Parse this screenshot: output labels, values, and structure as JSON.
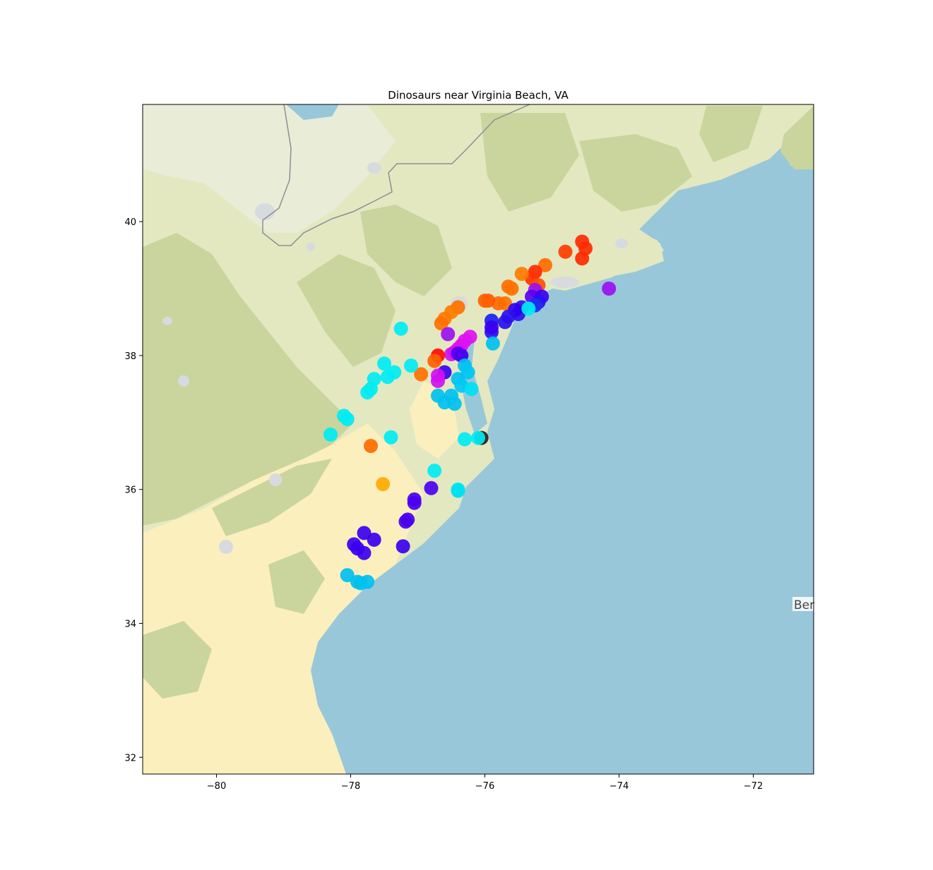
{
  "chart_data": {
    "type": "scatter",
    "title": "Dinosaurs near Virginia Beach, VA",
    "xlabel": "",
    "ylabel": "",
    "xlim": [
      -81.1,
      -71.1
    ],
    "ylim": [
      31.75,
      41.75
    ],
    "x_ticks": [
      -80,
      -78,
      -76,
      -74,
      -72
    ],
    "y_ticks": [
      32,
      34,
      36,
      38,
      40
    ],
    "x_tick_labels": [
      "−80",
      "−78",
      "−76",
      "−74",
      "−72"
    ],
    "y_tick_labels": [
      "32",
      "34",
      "36",
      "38",
      "40"
    ],
    "grid": false,
    "basemap_label": "Ber",
    "colors": {
      "ocean": "#98c7da",
      "land_lowland": "#fbefbd",
      "land_mid": "#e3e8c1",
      "land_forest": "#c9d59c",
      "land_high": "#e9ecd6",
      "urban": "#d7dade",
      "border": "#8a8f96"
    },
    "points": [
      {
        "x": -76.05,
        "y": 36.77,
        "color": "#222222"
      },
      {
        "x": -74.55,
        "y": 39.7,
        "color": "#ff2a00"
      },
      {
        "x": -74.5,
        "y": 39.6,
        "color": "#ff2a00"
      },
      {
        "x": -74.55,
        "y": 39.45,
        "color": "#ff2a00"
      },
      {
        "x": -74.8,
        "y": 39.55,
        "color": "#ff3c00"
      },
      {
        "x": -75.1,
        "y": 39.35,
        "color": "#ff6a00"
      },
      {
        "x": -75.25,
        "y": 39.25,
        "color": "#ff2a00"
      },
      {
        "x": -75.3,
        "y": 39.15,
        "color": "#ff3300"
      },
      {
        "x": -75.2,
        "y": 39.05,
        "color": "#ff5000"
      },
      {
        "x": -75.45,
        "y": 39.22,
        "color": "#ff7a00"
      },
      {
        "x": -75.6,
        "y": 39.0,
        "color": "#ff7000"
      },
      {
        "x": -75.65,
        "y": 39.03,
        "color": "#ff7000"
      },
      {
        "x": -75.7,
        "y": 38.78,
        "color": "#ff7000"
      },
      {
        "x": -75.8,
        "y": 38.78,
        "color": "#ff6a00"
      },
      {
        "x": -75.95,
        "y": 38.82,
        "color": "#ff5a00"
      },
      {
        "x": -76.0,
        "y": 38.82,
        "color": "#ff6000"
      },
      {
        "x": -75.25,
        "y": 38.98,
        "color": "#9b10f0"
      },
      {
        "x": -74.15,
        "y": 39.0,
        "color": "#9b10f0"
      },
      {
        "x": -75.3,
        "y": 38.88,
        "color": "#5a00f0"
      },
      {
        "x": -75.15,
        "y": 38.88,
        "color": "#3a00f0"
      },
      {
        "x": -75.2,
        "y": 38.8,
        "color": "#2a10f0"
      },
      {
        "x": -75.25,
        "y": 38.75,
        "color": "#1a30f0"
      },
      {
        "x": -75.45,
        "y": 38.72,
        "color": "#2a10f0"
      },
      {
        "x": -75.5,
        "y": 38.62,
        "color": "#2a10f0"
      },
      {
        "x": -75.55,
        "y": 38.68,
        "color": "#3000f0"
      },
      {
        "x": -75.7,
        "y": 38.5,
        "color": "#2a10f0"
      },
      {
        "x": -75.65,
        "y": 38.58,
        "color": "#2a10f0"
      },
      {
        "x": -75.9,
        "y": 38.52,
        "color": "#1a20f0"
      },
      {
        "x": -75.9,
        "y": 38.35,
        "color": "#2a10f0"
      },
      {
        "x": -75.9,
        "y": 38.42,
        "color": "#3a00f0"
      },
      {
        "x": -75.35,
        "y": 38.7,
        "color": "#00ecf4"
      },
      {
        "x": -75.88,
        "y": 38.18,
        "color": "#00c0f0"
      },
      {
        "x": -76.4,
        "y": 38.72,
        "color": "#ff7000"
      },
      {
        "x": -76.5,
        "y": 38.65,
        "color": "#ff7a00"
      },
      {
        "x": -76.6,
        "y": 38.55,
        "color": "#ff7a00"
      },
      {
        "x": -76.65,
        "y": 38.48,
        "color": "#ff7000"
      },
      {
        "x": -76.55,
        "y": 38.32,
        "color": "#9b10f0"
      },
      {
        "x": -76.22,
        "y": 38.28,
        "color": "#e010f0"
      },
      {
        "x": -76.3,
        "y": 38.22,
        "color": "#e010f0"
      },
      {
        "x": -76.35,
        "y": 38.15,
        "color": "#e010f0"
      },
      {
        "x": -76.4,
        "y": 38.1,
        "color": "#e010f0"
      },
      {
        "x": -76.45,
        "y": 38.05,
        "color": "#e010f0"
      },
      {
        "x": -76.5,
        "y": 38.02,
        "color": "#d010f0"
      },
      {
        "x": -76.35,
        "y": 38.0,
        "color": "#3a00f0"
      },
      {
        "x": -76.4,
        "y": 38.03,
        "color": "#5000f0"
      },
      {
        "x": -76.7,
        "y": 38.0,
        "color": "#ff0a00"
      },
      {
        "x": -76.75,
        "y": 37.92,
        "color": "#ff6000"
      },
      {
        "x": -76.6,
        "y": 37.75,
        "color": "#3a00f0"
      },
      {
        "x": -76.7,
        "y": 37.7,
        "color": "#d010f0"
      },
      {
        "x": -76.7,
        "y": 37.62,
        "color": "#d010f0"
      },
      {
        "x": -76.95,
        "y": 37.72,
        "color": "#ff7000"
      },
      {
        "x": -76.3,
        "y": 37.85,
        "color": "#00c0f0"
      },
      {
        "x": -76.25,
        "y": 37.75,
        "color": "#00c8f2"
      },
      {
        "x": -76.4,
        "y": 37.65,
        "color": "#00c0f0"
      },
      {
        "x": -76.35,
        "y": 37.55,
        "color": "#00c8f2"
      },
      {
        "x": -76.2,
        "y": 37.5,
        "color": "#00e0f4"
      },
      {
        "x": -76.5,
        "y": 37.4,
        "color": "#00c0f0"
      },
      {
        "x": -76.7,
        "y": 37.4,
        "color": "#00c0f0"
      },
      {
        "x": -76.6,
        "y": 37.3,
        "color": "#00c0f0"
      },
      {
        "x": -76.45,
        "y": 37.28,
        "color": "#00c0f0"
      },
      {
        "x": -77.25,
        "y": 38.4,
        "color": "#00ecf4"
      },
      {
        "x": -77.1,
        "y": 37.85,
        "color": "#00ecf4"
      },
      {
        "x": -77.5,
        "y": 37.88,
        "color": "#00ecf4"
      },
      {
        "x": -77.35,
        "y": 37.75,
        "color": "#00ecf4"
      },
      {
        "x": -77.45,
        "y": 37.68,
        "color": "#00ecf4"
      },
      {
        "x": -77.65,
        "y": 37.65,
        "color": "#00ecf4"
      },
      {
        "x": -77.7,
        "y": 37.5,
        "color": "#00ecf4"
      },
      {
        "x": -77.75,
        "y": 37.45,
        "color": "#00ecf4"
      },
      {
        "x": -78.1,
        "y": 37.1,
        "color": "#00ecf4"
      },
      {
        "x": -78.05,
        "y": 37.05,
        "color": "#00ecf4"
      },
      {
        "x": -78.3,
        "y": 36.82,
        "color": "#00ecf4"
      },
      {
        "x": -77.4,
        "y": 36.78,
        "color": "#00ecf4"
      },
      {
        "x": -76.3,
        "y": 36.75,
        "color": "#00ecf4"
      },
      {
        "x": -76.1,
        "y": 36.77,
        "color": "#00ecf4"
      },
      {
        "x": -76.75,
        "y": 36.28,
        "color": "#00ecf4"
      },
      {
        "x": -76.4,
        "y": 36.0,
        "color": "#00ecf4"
      },
      {
        "x": -76.4,
        "y": 35.98,
        "color": "#00e0f4"
      },
      {
        "x": -77.7,
        "y": 36.65,
        "color": "#ff6a00"
      },
      {
        "x": -77.52,
        "y": 36.08,
        "color": "#ffaa00"
      },
      {
        "x": -76.8,
        "y": 36.02,
        "color": "#4a00f0"
      },
      {
        "x": -77.05,
        "y": 35.85,
        "color": "#4a00f0"
      },
      {
        "x": -77.05,
        "y": 35.8,
        "color": "#4a00f0"
      },
      {
        "x": -77.15,
        "y": 35.55,
        "color": "#4a00f0"
      },
      {
        "x": -77.18,
        "y": 35.52,
        "color": "#4a00f0"
      },
      {
        "x": -77.8,
        "y": 35.35,
        "color": "#3a00f0"
      },
      {
        "x": -77.65,
        "y": 35.25,
        "color": "#3a00f0"
      },
      {
        "x": -77.95,
        "y": 35.18,
        "color": "#3a00f0"
      },
      {
        "x": -77.9,
        "y": 35.12,
        "color": "#3a00f0"
      },
      {
        "x": -77.8,
        "y": 35.05,
        "color": "#3a00f0"
      },
      {
        "x": -77.22,
        "y": 35.15,
        "color": "#3a00f0"
      },
      {
        "x": -78.05,
        "y": 34.72,
        "color": "#00c0f0"
      },
      {
        "x": -77.9,
        "y": 34.62,
        "color": "#00c0f0"
      },
      {
        "x": -77.85,
        "y": 34.6,
        "color": "#00c0f0"
      },
      {
        "x": -77.75,
        "y": 34.62,
        "color": "#00c0f0"
      }
    ]
  }
}
